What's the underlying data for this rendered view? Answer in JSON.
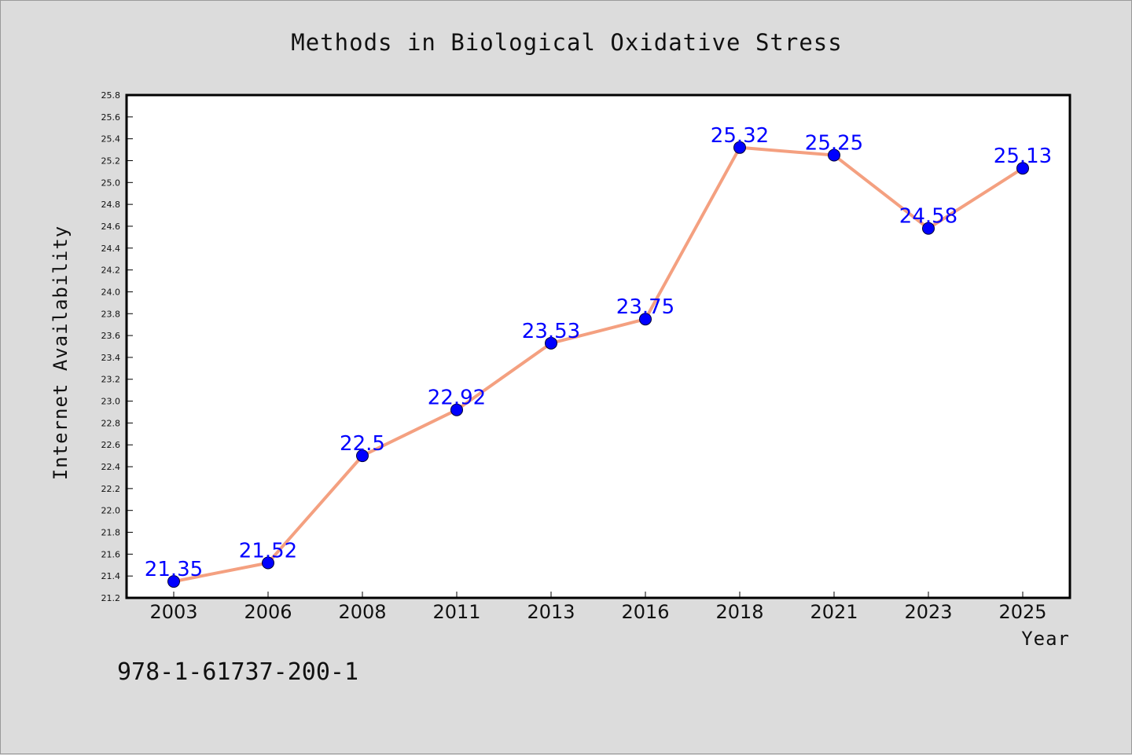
{
  "chart_data": {
    "type": "line",
    "title": "Methods in Biological Oxidative Stress",
    "xlabel": "Year",
    "ylabel": "Internet Availability",
    "categories": [
      "2003",
      "2006",
      "2008",
      "2011",
      "2013",
      "2016",
      "2018",
      "2021",
      "2023",
      "2025"
    ],
    "series": [
      {
        "values": [
          21.35,
          21.52,
          22.5,
          22.92,
          23.53,
          23.75,
          25.32,
          25.25,
          24.58,
          25.13
        ],
        "data_labels": [
          "21.35",
          "21.52",
          "22.5",
          "22.92",
          "23.53",
          "23.75",
          "25.32",
          "25.25",
          "24.58",
          "25.13"
        ],
        "line_color": "#f4a080",
        "marker_color": "#0000ff"
      }
    ],
    "ylim": [
      21.2,
      25.8
    ],
    "yticks": [
      "21.2",
      "21.4",
      "21.6",
      "21.8",
      "22.0",
      "22.2",
      "22.4",
      "22.6",
      "22.8",
      "23.0",
      "23.2",
      "23.4",
      "23.6",
      "23.8",
      "24.0",
      "24.2",
      "24.4",
      "24.6",
      "24.8",
      "25.0",
      "25.2",
      "25.4",
      "25.6",
      "25.8"
    ],
    "grid": false,
    "legend": "none"
  },
  "footer": {
    "text": "978-1-61737-200-1"
  },
  "colors": {
    "background": "#dcdcdc",
    "plot_background": "#ffffff",
    "axis": "#000000"
  }
}
